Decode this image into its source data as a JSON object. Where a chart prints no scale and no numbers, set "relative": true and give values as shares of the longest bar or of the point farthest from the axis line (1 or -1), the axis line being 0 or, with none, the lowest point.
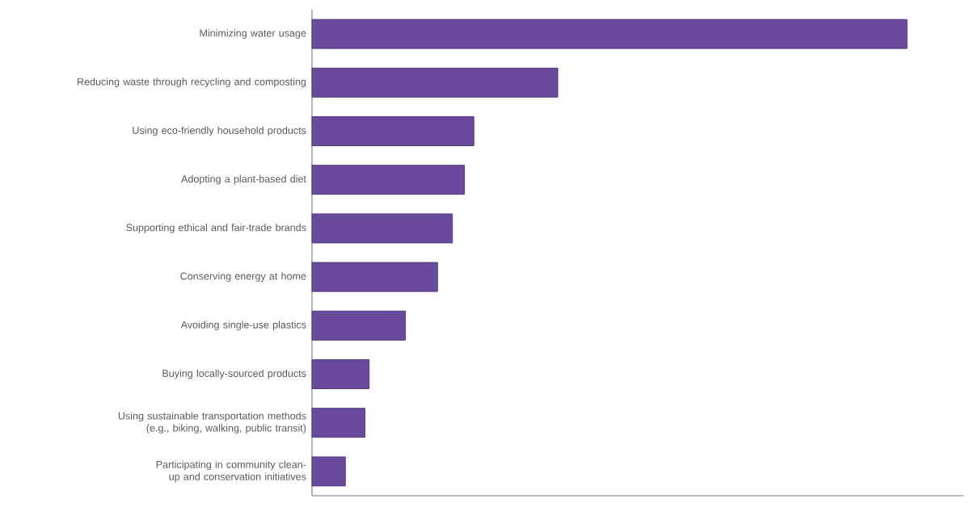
{
  "chart_data": {
    "type": "bar",
    "orientation": "horizontal",
    "relative": true,
    "color": "#6a4a9c",
    "categories": [
      "Minimizing water usage",
      "Reducing waste through recycling and composting",
      "Using eco-friendly household products",
      "Adopting a plant-based diet",
      "Supporting ethical and fair-trade brands",
      "Conserving energy at home",
      "Avoiding single-use plastics",
      "Buying locally-sourced products",
      "Using sustainable transportation methods (e.g., biking, walking, public transit)",
      "Participating in community clean-up and conservation initiatives"
    ],
    "values": [
      1,
      0.413,
      0.272,
      0.256,
      0.236,
      0.211,
      0.157,
      0.096,
      0.089,
      0.056
    ]
  }
}
